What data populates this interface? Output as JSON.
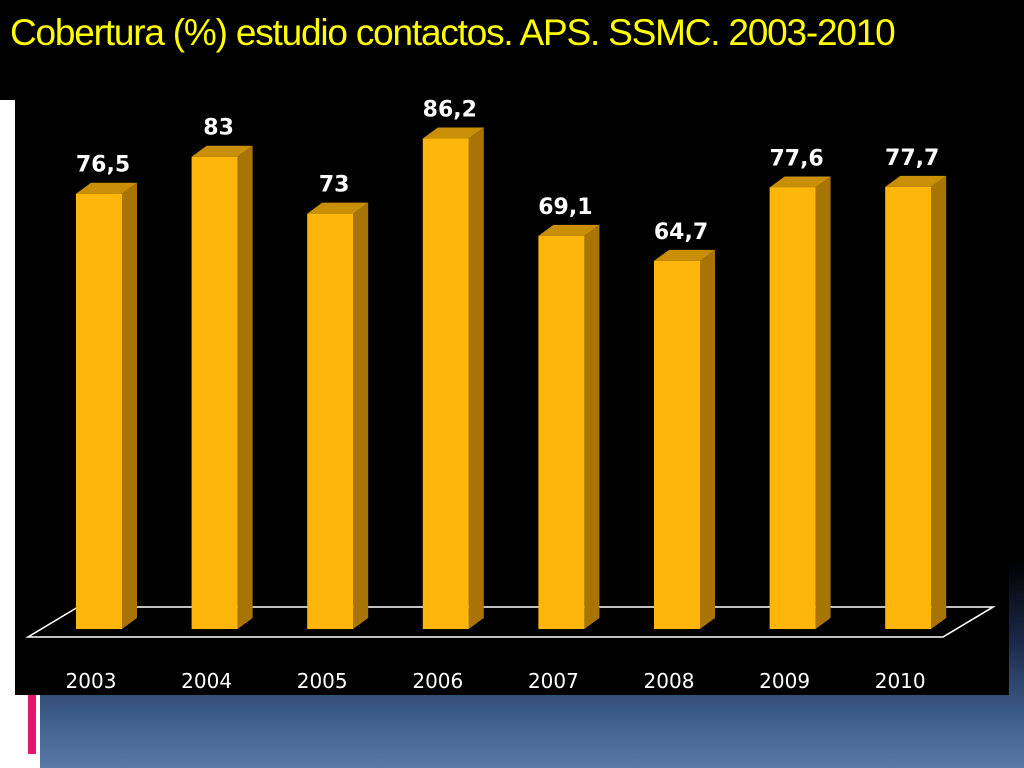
{
  "slide": {
    "title": "Cobertura (%) estudio contactos.  APS.  SSMC.  2003-2010"
  },
  "colors": {
    "bar_front": "#ffb60a",
    "bar_side": "#a87405",
    "bar_top": "#c98f06",
    "title": "#ffff00",
    "accent": "#e8156e"
  },
  "chart_data": {
    "type": "bar",
    "title": "",
    "xlabel": "",
    "ylabel": "",
    "categories": [
      "2003",
      "2004",
      "2005",
      "2006",
      "2007",
      "2008",
      "2009",
      "2010"
    ],
    "values": [
      76.5,
      83,
      73,
      86.2,
      69.1,
      64.7,
      77.6,
      77.7
    ],
    "value_labels": [
      "76,5",
      "83",
      "73",
      "86,2",
      "69,1",
      "64,7",
      "77,6",
      "77,7"
    ],
    "ylim": [
      0,
      100
    ],
    "grid": false,
    "legend": "none"
  }
}
